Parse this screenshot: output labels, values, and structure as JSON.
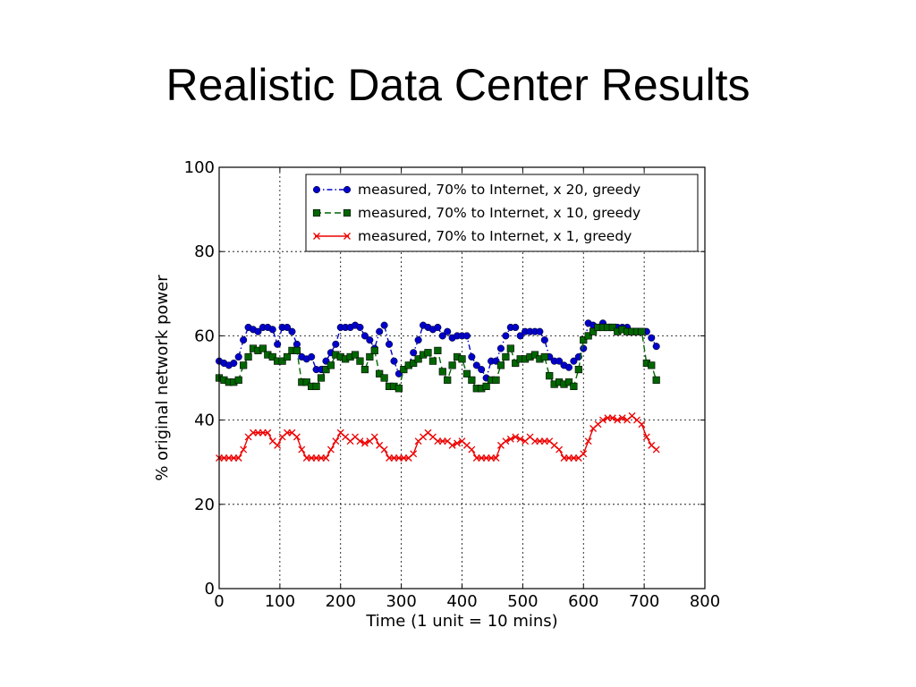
{
  "slide": {
    "title": "Realistic Data Center Results"
  },
  "chart_data": {
    "type": "line",
    "title": "",
    "xlabel": "Time (1 unit = 10 mins)",
    "ylabel": "% original network power",
    "xlim": [
      0,
      800
    ],
    "ylim": [
      0,
      100
    ],
    "xticks": [
      0,
      100,
      200,
      300,
      400,
      500,
      600,
      700,
      800
    ],
    "yticks": [
      0,
      20,
      40,
      60,
      80,
      100
    ],
    "grid": true,
    "legend_position": "top-right",
    "series": [
      {
        "name": "measured, 70% to Internet, x 20, greedy",
        "color": "#0000cc",
        "marker": "circle",
        "linestyle": "dash-dot",
        "x": [
          0,
          8,
          16,
          24,
          32,
          40,
          48,
          56,
          64,
          72,
          80,
          88,
          96,
          104,
          112,
          120,
          128,
          136,
          144,
          152,
          160,
          168,
          176,
          184,
          192,
          200,
          208,
          216,
          224,
          232,
          240,
          248,
          256,
          264,
          272,
          280,
          288,
          296,
          304,
          312,
          320,
          328,
          336,
          344,
          352,
          360,
          368,
          376,
          384,
          392,
          400,
          408,
          416,
          424,
          432,
          440,
          448,
          456,
          464,
          472,
          480,
          488,
          496,
          504,
          512,
          520,
          528,
          536,
          544,
          552,
          560,
          568,
          576,
          584,
          592,
          600,
          608,
          616,
          624,
          632,
          640,
          648,
          656,
          664,
          672,
          680,
          688,
          696,
          704,
          712,
          720
        ],
        "y": [
          54,
          53.5,
          53,
          53.5,
          55,
          59,
          62,
          61.5,
          61,
          62,
          62,
          61.5,
          58,
          62,
          62,
          61,
          58,
          55,
          54.5,
          55,
          52,
          52,
          54,
          56,
          58,
          62,
          62,
          62,
          62.5,
          62,
          60,
          59,
          57,
          61,
          62.5,
          58,
          54,
          51,
          52,
          53,
          56,
          59,
          62.5,
          62,
          61.5,
          62,
          60,
          61,
          59.5,
          60,
          60,
          60,
          55,
          53,
          52,
          50,
          54,
          54,
          57,
          60,
          62,
          62,
          60,
          61,
          61,
          61,
          61,
          59,
          55,
          54,
          54,
          53,
          52.5,
          54,
          55,
          57,
          63,
          62.5,
          62,
          63,
          62,
          62,
          62,
          62,
          62,
          61,
          61,
          61,
          61,
          59.5,
          57.5
        ]
      },
      {
        "name": "measured, 70% to Internet, x 10, greedy",
        "color": "#006600",
        "marker": "square",
        "linestyle": "dashed",
        "x": [
          0,
          8,
          16,
          24,
          32,
          40,
          48,
          56,
          64,
          72,
          80,
          88,
          96,
          104,
          112,
          120,
          128,
          136,
          144,
          152,
          160,
          168,
          176,
          184,
          192,
          200,
          208,
          216,
          224,
          232,
          240,
          248,
          256,
          264,
          272,
          280,
          288,
          296,
          304,
          312,
          320,
          328,
          336,
          344,
          352,
          360,
          368,
          376,
          384,
          392,
          400,
          408,
          416,
          424,
          432,
          440,
          448,
          456,
          464,
          472,
          480,
          488,
          496,
          504,
          512,
          520,
          528,
          536,
          544,
          552,
          560,
          568,
          576,
          584,
          592,
          600,
          608,
          616,
          624,
          632,
          640,
          648,
          656,
          664,
          672,
          680,
          688,
          696,
          704,
          712,
          720
        ],
        "y": [
          50,
          49.5,
          49,
          49,
          49.5,
          53,
          55,
          57,
          56.5,
          57,
          55.5,
          55,
          54,
          54,
          55,
          56.5,
          56.5,
          49,
          49,
          48,
          48,
          50,
          52,
          53,
          55.5,
          55,
          54.5,
          55,
          55.5,
          54,
          52,
          55,
          56.5,
          51,
          50,
          48,
          48,
          47.5,
          52,
          53,
          53.5,
          54.5,
          55.5,
          56,
          54,
          56.5,
          51.5,
          49.5,
          53,
          55,
          54.5,
          51,
          49.5,
          47.5,
          47.5,
          48,
          49.5,
          49.5,
          53,
          55,
          57,
          53.5,
          54.5,
          54.5,
          55,
          55.5,
          54.5,
          55,
          50.5,
          48.5,
          49,
          48.5,
          49,
          48,
          52,
          59,
          60,
          61,
          62,
          62,
          62,
          62,
          61,
          61.5,
          61,
          61,
          61,
          61,
          53.5,
          53,
          49.5
        ]
      },
      {
        "name": "measured, 70% to Internet, x 1, greedy",
        "color": "#ee0000",
        "marker": "x",
        "linestyle": "solid",
        "x": [
          0,
          8,
          16,
          24,
          32,
          40,
          48,
          56,
          64,
          72,
          80,
          88,
          96,
          104,
          112,
          120,
          128,
          136,
          144,
          152,
          160,
          168,
          176,
          184,
          192,
          200,
          208,
          216,
          224,
          232,
          240,
          248,
          256,
          264,
          272,
          280,
          288,
          296,
          304,
          312,
          320,
          328,
          336,
          344,
          352,
          360,
          368,
          376,
          384,
          392,
          400,
          408,
          416,
          424,
          432,
          440,
          448,
          456,
          464,
          472,
          480,
          488,
          496,
          504,
          512,
          520,
          528,
          536,
          544,
          552,
          560,
          568,
          576,
          584,
          592,
          600,
          608,
          616,
          624,
          632,
          640,
          648,
          656,
          664,
          672,
          680,
          688,
          696,
          704,
          712,
          720
        ],
        "y": [
          31,
          31,
          31,
          31,
          31,
          33,
          36,
          37,
          37,
          37,
          37,
          35,
          34,
          36,
          37,
          37,
          36,
          33,
          31,
          31,
          31,
          31,
          31,
          33,
          35,
          37,
          36,
          35,
          36,
          35,
          34.5,
          35,
          36,
          34,
          33,
          31,
          31,
          31,
          31,
          31,
          32,
          35,
          36,
          37,
          36,
          35,
          35,
          35,
          34,
          34.5,
          35,
          34,
          33,
          31,
          31,
          31,
          31,
          31,
          34,
          35,
          35.5,
          36,
          35.5,
          35,
          36,
          35,
          35,
          35,
          35,
          34,
          33,
          31,
          31,
          31,
          31,
          32,
          35,
          38,
          39,
          40,
          40.5,
          40.5,
          40,
          40.5,
          40,
          41,
          40,
          39,
          36,
          34,
          33
        ]
      }
    ]
  }
}
